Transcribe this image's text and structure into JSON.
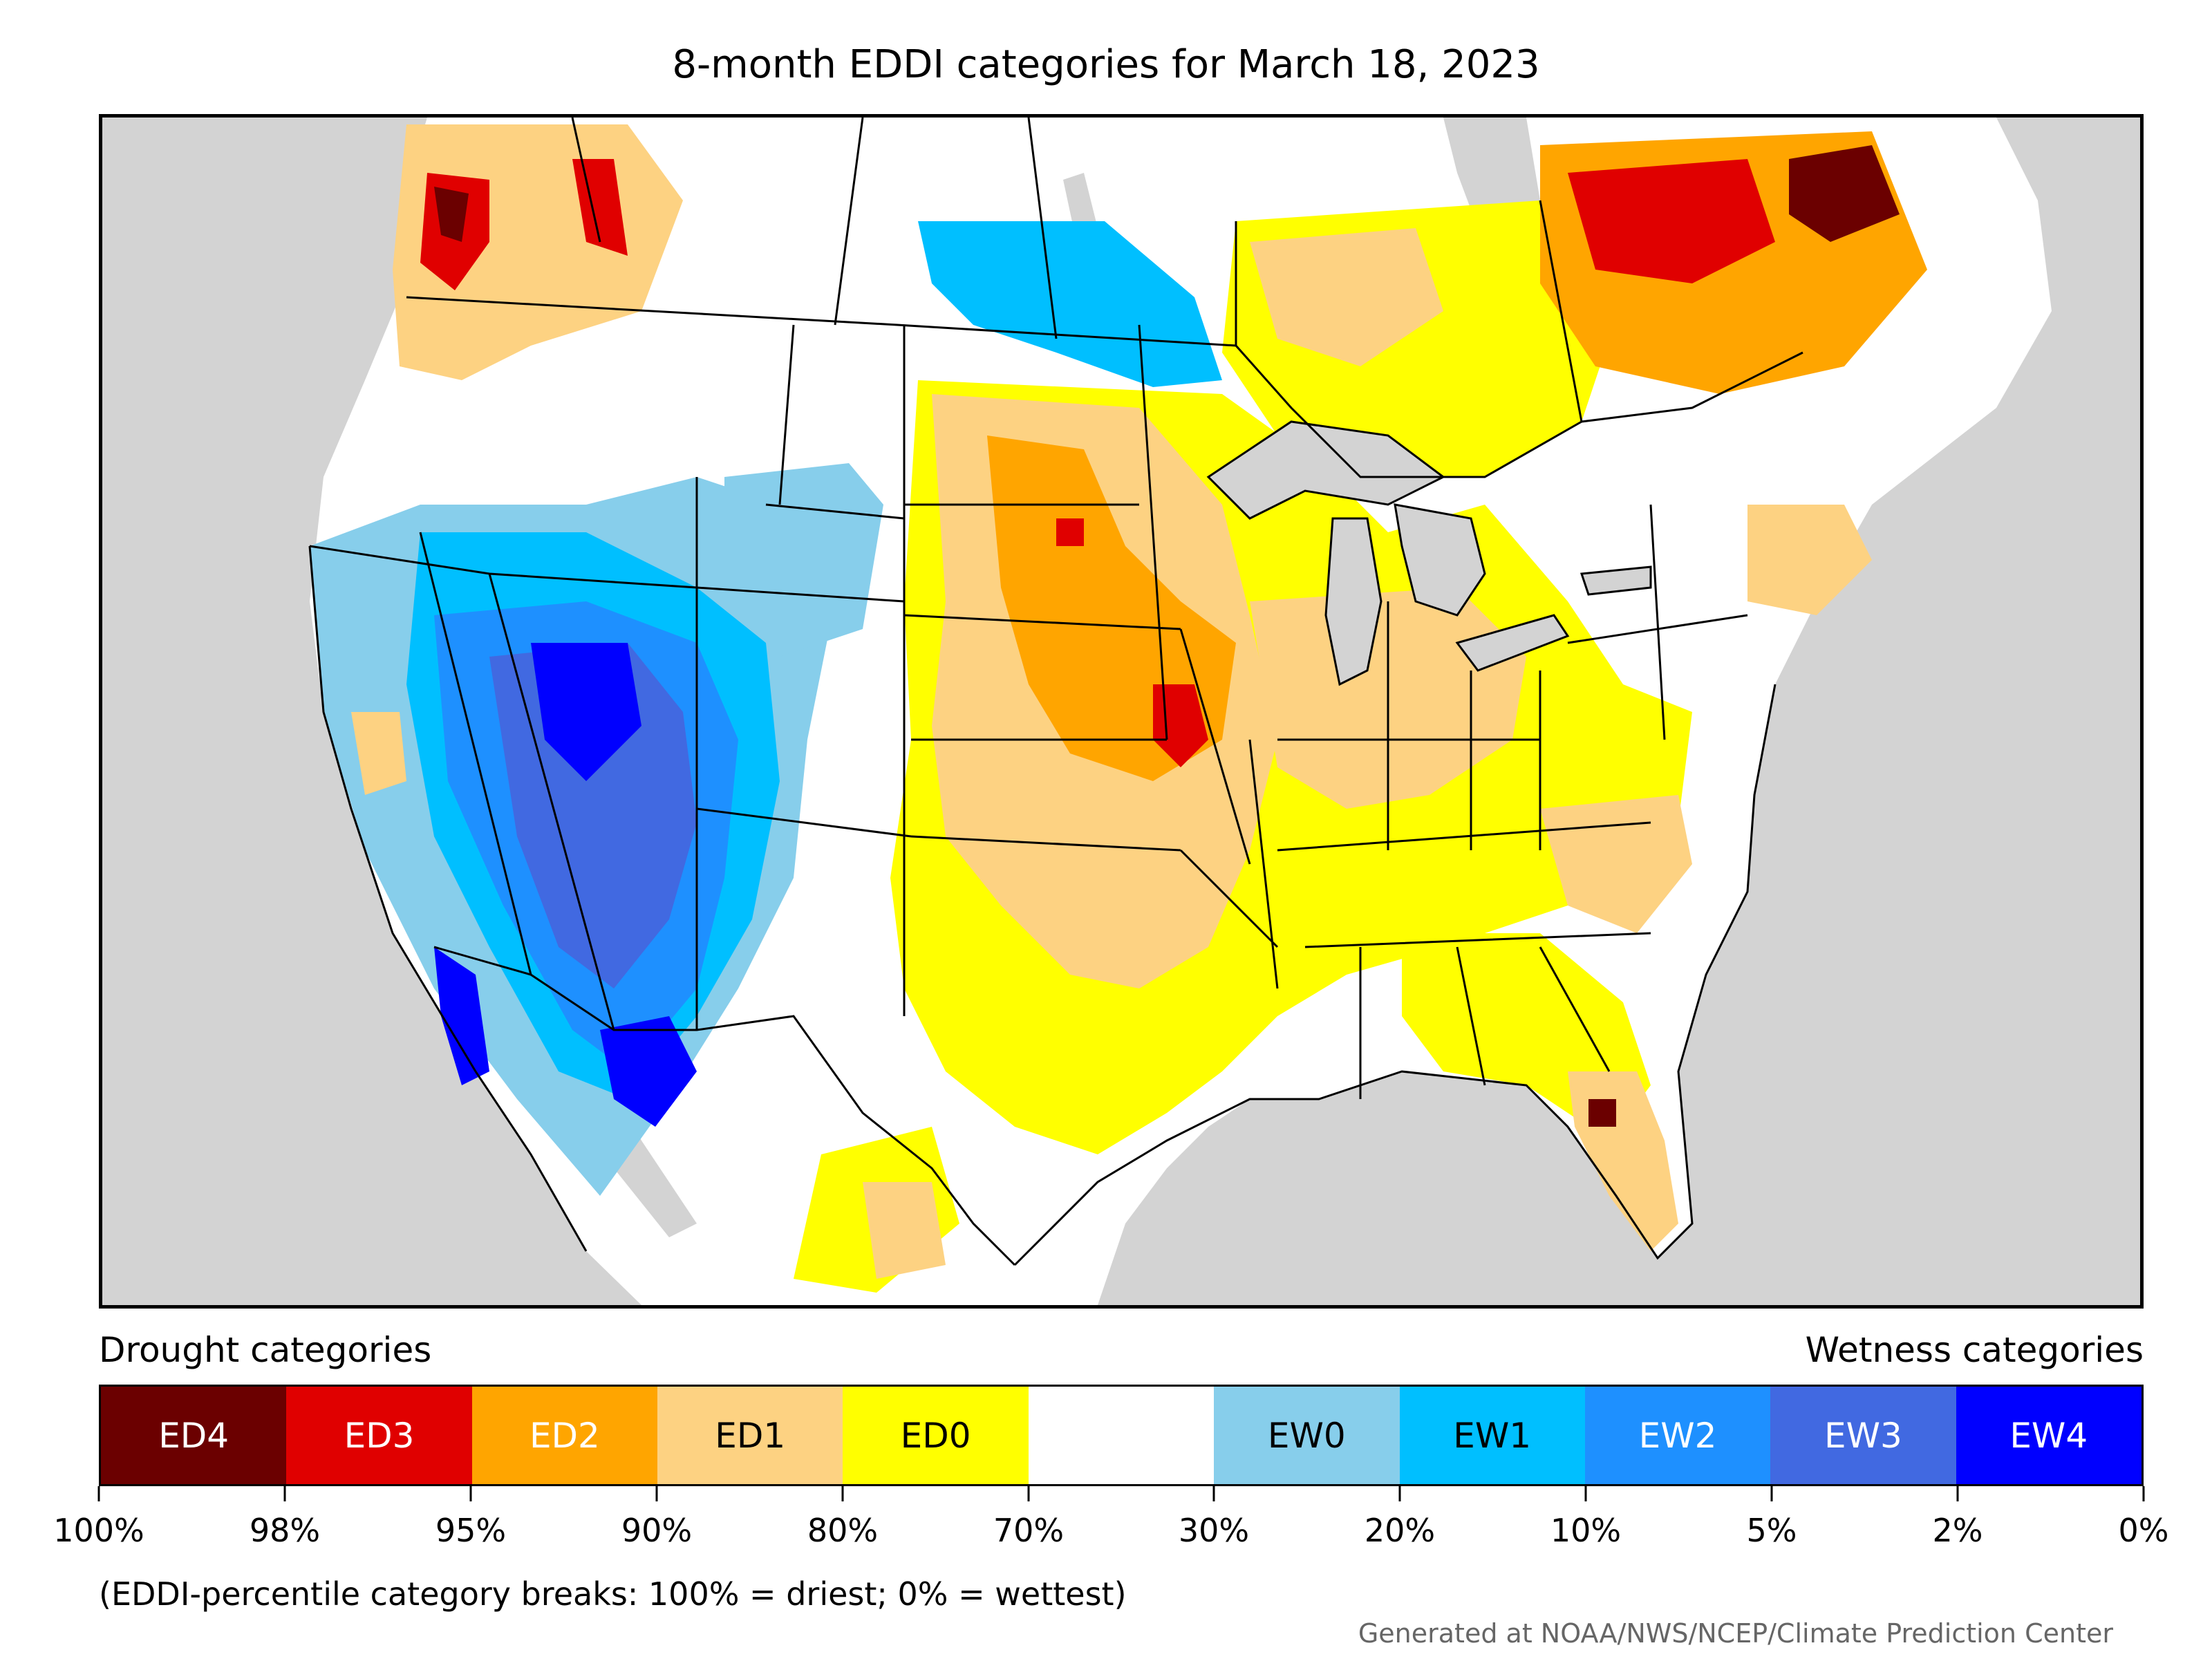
{
  "title": "8-month EDDI categories for March 18, 2023",
  "map": {
    "subject": "Contiguous United States with southern Canada and northern Mexico",
    "background_color": "#d3d3d3",
    "boundary_color": "#000000"
  },
  "legend": {
    "left_heading": "Drought categories",
    "right_heading": "Wetness categories",
    "categories": [
      {
        "label": "ED4",
        "color": "#6b0000",
        "text_color": "#ffffff"
      },
      {
        "label": "ED3",
        "color": "#e00000",
        "text_color": "#ffffff"
      },
      {
        "label": "ED2",
        "color": "#ffa500",
        "text_color": "#ffffff"
      },
      {
        "label": "ED1",
        "color": "#fdd282",
        "text_color": "#000000"
      },
      {
        "label": "ED0",
        "color": "#ffff00",
        "text_color": "#000000"
      },
      {
        "label": "",
        "color": "#ffffff",
        "text_color": "#000000"
      },
      {
        "label": "EW0",
        "color": "#87ceeb",
        "text_color": "#000000"
      },
      {
        "label": "EW1",
        "color": "#00bfff",
        "text_color": "#000000"
      },
      {
        "label": "EW2",
        "color": "#1e90ff",
        "text_color": "#ffffff"
      },
      {
        "label": "EW3",
        "color": "#4169e1",
        "text_color": "#ffffff"
      },
      {
        "label": "EW4",
        "color": "#0000ff",
        "text_color": "#ffffff"
      }
    ],
    "breaks": [
      "100%",
      "98%",
      "95%",
      "90%",
      "80%",
      "70%",
      "30%",
      "20%",
      "10%",
      "5%",
      "2%",
      "0%"
    ]
  },
  "footnote": "(EDDI-percentile category breaks: 100% = driest; 0% = wettest)",
  "credit": "Generated at NOAA/NWS/NCEP/Climate Prediction Center"
}
